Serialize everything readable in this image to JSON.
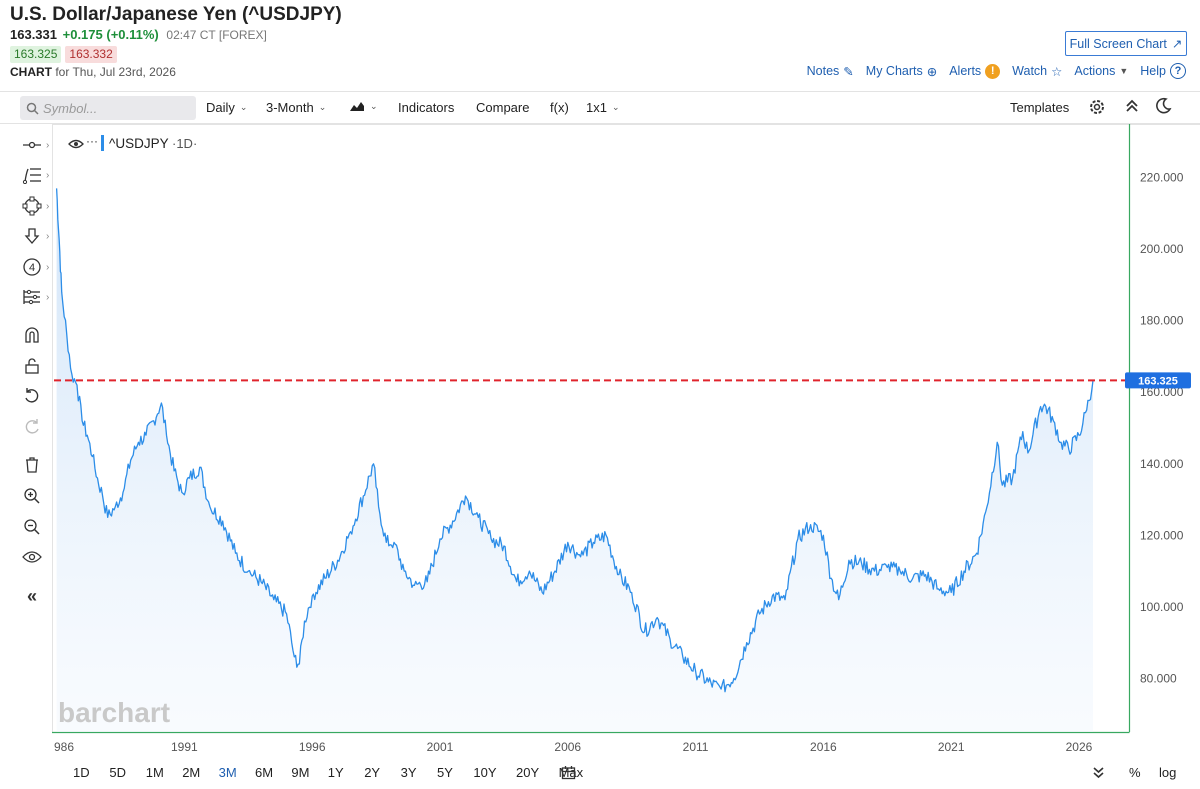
{
  "header": {
    "title": "U.S. Dollar/Japanese Yen (^USDJPY)",
    "last": "163.331",
    "change": "+0.175 (+0.11%)",
    "time": "02:47 CT [FOREX]",
    "bid": "163.325",
    "ask": "163.332",
    "chart_label": "CHART",
    "chart_date": "for Thu, Jul 23rd, 2026",
    "fullscreen": "Full Screen Chart"
  },
  "links": {
    "notes": "Notes",
    "mycharts": "My Charts",
    "alerts": "Alerts",
    "alerts_badge": "!",
    "watch": "Watch",
    "actions": "Actions",
    "help": "Help",
    "help_badge": "?"
  },
  "toolbar": {
    "symbol_placeholder": "Symbol...",
    "daily": "Daily",
    "range": "3-Month",
    "indicators": "Indicators",
    "compare": "Compare",
    "fx": "f(x)",
    "layout": "1x1",
    "templates": "Templates"
  },
  "legend": {
    "symbol": "^USDJPY",
    "interval": "·1D·",
    "dots": "···"
  },
  "watermark": "barchart",
  "timeframes": [
    "1D",
    "5D",
    "1M",
    "2M",
    "3M",
    "6M",
    "9M",
    "1Y",
    "2Y",
    "3Y",
    "5Y",
    "10Y",
    "20Y",
    "Max"
  ],
  "active_timeframe": "3M",
  "bottom_right": {
    "pct": "%",
    "log": "log"
  },
  "colors": {
    "line": "#2c8de8",
    "area_top": "#cfe3f8",
    "price_line": "#e0242c",
    "price_tag": "#1f6fe0",
    "axis": "#38a860",
    "accent": "#1f5fb0"
  },
  "chart_data": {
    "type": "area",
    "title": "^USDJPY",
    "interval": "1D",
    "x_ticks": [
      "986",
      "1991",
      "1996",
      "2001",
      "2006",
      "2011",
      "2016",
      "2021",
      "2026"
    ],
    "y_ticks": [
      "80.000",
      "100.000",
      "120.000",
      "140.000",
      "160.000",
      "180.000",
      "200.000",
      "220.000"
    ],
    "ylim": [
      65,
      235
    ],
    "xlim": [
      1985.9,
      2027.8
    ],
    "last_price": 163.325,
    "last_price_label": "163.325",
    "series": [
      {
        "x": [
          1986.0,
          1986.1,
          1986.2,
          1986.4,
          1986.6,
          1986.8,
          1987.0,
          1987.2,
          1987.4,
          1987.6,
          1987.8,
          1988.0,
          1988.3,
          1988.6,
          1988.9,
          1989.2,
          1989.5,
          1989.8,
          1990.1,
          1990.3,
          1990.6,
          1990.9,
          1991.2,
          1991.6,
          1992.0,
          1992.5,
          1993.0,
          1993.5,
          1994.0,
          1994.5,
          1995.0,
          1995.3,
          1995.5,
          1995.7,
          1996.0,
          1996.5,
          1997.0,
          1997.5,
          1998.0,
          1998.4,
          1998.6,
          1998.9,
          1999.2,
          1999.6,
          2000.0,
          2000.5,
          2001.0,
          2001.5,
          2002.0,
          2002.5,
          2003.0,
          2003.5,
          2004.0,
          2004.5,
          2005.0,
          2005.5,
          2006.0,
          2006.5,
          2007.0,
          2007.5,
          2008.0,
          2008.5,
          2009.0,
          2009.5,
          2010.0,
          2010.5,
          2011.0,
          2011.5,
          2012.0,
          2012.5,
          2013.0,
          2013.5,
          2014.0,
          2014.5,
          2015.0,
          2015.5,
          2016.0,
          2016.3,
          2016.6,
          2017.0,
          2017.5,
          2018.0,
          2018.5,
          2019.0,
          2019.5,
          2020.0,
          2020.5,
          2021.0,
          2021.5,
          2022.0,
          2022.4,
          2022.8,
          2023.0,
          2023.4,
          2023.8,
          2024.0,
          2024.5,
          2024.7,
          2025.0,
          2025.3,
          2025.6,
          2026.0,
          2026.3,
          2026.55
        ],
        "y": [
          217,
          203,
          188,
          176,
          165,
          162,
          152,
          148,
          142,
          136,
          131,
          125,
          128,
          132,
          141,
          146,
          148,
          152,
          157,
          148,
          138,
          132,
          136,
          139,
          128,
          124,
          115,
          110,
          107,
          102,
          98,
          86,
          84,
          96,
          103,
          108,
          113,
          121,
          131,
          140,
          128,
          118,
          118,
          110,
          106,
          107,
          119,
          124,
          131,
          125,
          119,
          117,
          107,
          110,
          104,
          110,
          118,
          114,
          118,
          120,
          109,
          104,
          93,
          97,
          91,
          86,
          82,
          79,
          77,
          80,
          90,
          98,
          103,
          102,
          119,
          123,
          120,
          108,
          102,
          113,
          112,
          110,
          111,
          110,
          108,
          109,
          105,
          104,
          110,
          115,
          128,
          146,
          134,
          136,
          149,
          143,
          156,
          156,
          152,
          146,
          144,
          148,
          155,
          163.3
        ]
      }
    ]
  }
}
